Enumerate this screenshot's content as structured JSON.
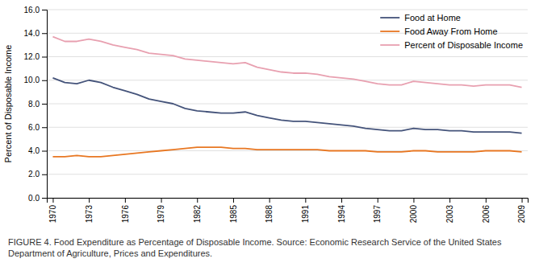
{
  "chart_data": {
    "type": "line",
    "ylabel": "Percent of Disposable Income",
    "caption": "FIGURE 4. Food Expenditure as Percentage of Disposable Income. Source: Economic Research Service of the United States Department of Agriculture, Prices and Expenditures.",
    "x": [
      1970,
      1971,
      1972,
      1973,
      1974,
      1975,
      1976,
      1977,
      1978,
      1979,
      1980,
      1981,
      1982,
      1983,
      1984,
      1985,
      1986,
      1987,
      1988,
      1989,
      1990,
      1991,
      1992,
      1993,
      1994,
      1995,
      1996,
      1997,
      1998,
      1999,
      2000,
      2001,
      2002,
      2003,
      2004,
      2005,
      2006,
      2007,
      2008,
      2009
    ],
    "series": [
      {
        "name": "Food at Home",
        "color": "#44537a",
        "values": [
          10.2,
          9.8,
          9.7,
          10.0,
          9.8,
          9.4,
          9.1,
          8.8,
          8.4,
          8.2,
          8.0,
          7.6,
          7.4,
          7.3,
          7.2,
          7.2,
          7.3,
          7.0,
          6.8,
          6.6,
          6.5,
          6.5,
          6.4,
          6.3,
          6.2,
          6.1,
          5.9,
          5.8,
          5.7,
          5.7,
          5.9,
          5.8,
          5.8,
          5.7,
          5.7,
          5.6,
          5.6,
          5.6,
          5.6,
          5.5
        ]
      },
      {
        "name": "Food Away From Home",
        "color": "#e87722",
        "values": [
          3.5,
          3.5,
          3.6,
          3.5,
          3.5,
          3.6,
          3.7,
          3.8,
          3.9,
          4.0,
          4.1,
          4.2,
          4.3,
          4.3,
          4.3,
          4.2,
          4.2,
          4.1,
          4.1,
          4.1,
          4.1,
          4.1,
          4.1,
          4.0,
          4.0,
          4.0,
          4.0,
          3.9,
          3.9,
          3.9,
          4.0,
          4.0,
          3.9,
          3.9,
          3.9,
          3.9,
          4.0,
          4.0,
          4.0,
          3.9
        ]
      },
      {
        "name": "Percent of Disposable Income",
        "color": "#e8a0b0",
        "values": [
          13.7,
          13.3,
          13.3,
          13.5,
          13.3,
          13.0,
          12.8,
          12.6,
          12.3,
          12.2,
          12.1,
          11.8,
          11.7,
          11.6,
          11.5,
          11.4,
          11.5,
          11.1,
          10.9,
          10.7,
          10.6,
          10.6,
          10.5,
          10.3,
          10.2,
          10.1,
          9.9,
          9.7,
          9.6,
          9.6,
          9.9,
          9.8,
          9.7,
          9.6,
          9.6,
          9.5,
          9.6,
          9.6,
          9.6,
          9.4
        ]
      }
    ],
    "xlim": [
      1969.5,
      2009.5
    ],
    "xticks": [
      1970,
      1973,
      1976,
      1979,
      1982,
      1985,
      1988,
      1991,
      1994,
      1997,
      2000,
      2003,
      2006,
      2009
    ],
    "ylim": [
      0,
      16
    ],
    "yticks": [
      {
        "value": 0,
        "label": "0.0"
      },
      {
        "value": 2,
        "label": "2.0"
      },
      {
        "value": 4,
        "label": "4.0"
      },
      {
        "value": 6,
        "label": "6.0"
      },
      {
        "value": 8,
        "label": "8.0"
      },
      {
        "value": 10,
        "label": "10.0"
      },
      {
        "value": 12,
        "label": "12.0"
      },
      {
        "value": 14,
        "label": "14.0"
      },
      {
        "value": 16,
        "label": "16.0"
      }
    ],
    "grid": true,
    "legend": "upper right"
  }
}
